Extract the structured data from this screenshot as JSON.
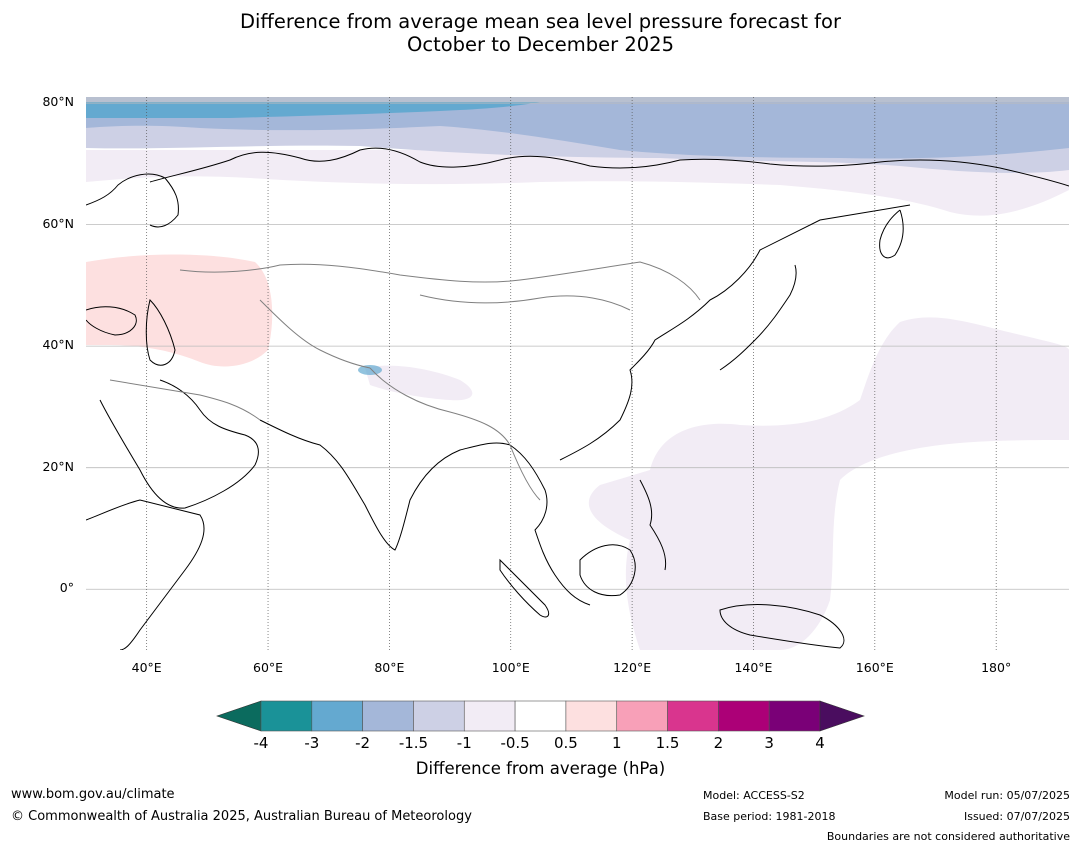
{
  "title_line1": "Difference from average mean sea level pressure forecast for",
  "title_line2": "October to December 2025",
  "map": {
    "lat_labels": [
      {
        "value": 80,
        "label": "80°N"
      },
      {
        "value": 60,
        "label": "60°N"
      },
      {
        "value": 40,
        "label": "40°N"
      },
      {
        "value": 20,
        "label": "20°N"
      },
      {
        "value": 0,
        "label": "0°"
      }
    ],
    "lon_labels": [
      {
        "value": 40,
        "label": "40°E"
      },
      {
        "value": 60,
        "label": "60°E"
      },
      {
        "value": 80,
        "label": "80°E"
      },
      {
        "value": 100,
        "label": "100°E"
      },
      {
        "value": 120,
        "label": "120°E"
      },
      {
        "value": 140,
        "label": "140°E"
      },
      {
        "value": 160,
        "label": "160°E"
      },
      {
        "value": 180,
        "label": "180°"
      }
    ],
    "extent": {
      "lon_min": 30,
      "lon_max": 192,
      "lat_min": -10,
      "lat_max": 81
    }
  },
  "colorbar": {
    "title": "Difference from average (hPa)",
    "under_color": "#0b6b5e",
    "over_color": "#4a0d5f",
    "colors": [
      "#1a9298",
      "#64a9d0",
      "#a4b7d9",
      "#cdd0e5",
      "#f2ecf5",
      "#ffffff",
      "#fde0e0",
      "#f8a0b8",
      "#d9358e",
      "#ac0077",
      "#7a0077"
    ],
    "ticks": [
      "-4",
      "-3",
      "-2",
      "-1.5",
      "-1",
      "-0.5",
      "0.5",
      "1",
      "1.5",
      "2",
      "3",
      "4"
    ]
  },
  "footer": {
    "website": "www.bom.gov.au/climate",
    "copyright": "© Commonwealth of Australia 2025, Australian Bureau of Meteorology",
    "model": "Model: ACCESS-S2",
    "base_period": "Base period: 1981-2018",
    "model_run": "Model run: 05/07/2025",
    "issued": "Issued: 07/07/2025",
    "disclaimer": "Boundaries are not considered authoritative"
  }
}
